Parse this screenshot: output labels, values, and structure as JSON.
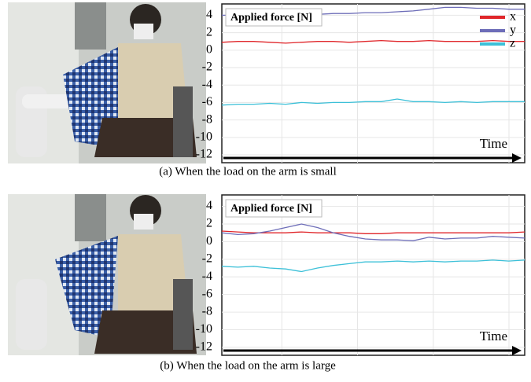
{
  "captions": [
    "(a) When the load on the arm is small",
    "(b) When the load on the arm is large"
  ],
  "chart_data": [
    {
      "type": "line",
      "title": "Applied force [N]",
      "x_label": "Time",
      "x": [
        0,
        1,
        2,
        3,
        4,
        5,
        6,
        7,
        8,
        9,
        10,
        11,
        12,
        13,
        14,
        15,
        16,
        17,
        18,
        19
      ],
      "xlim": [
        0,
        19
      ],
      "ylim": [
        -12.9,
        5.3
      ],
      "yticks": [
        4,
        2,
        0,
        -2,
        -4,
        -6,
        -8,
        -10,
        -12
      ],
      "grid": true,
      "legend": "upper right",
      "series": [
        {
          "name": "x",
          "color": "#e0262a",
          "values": [
            0.9,
            1.0,
            1.0,
            0.9,
            0.8,
            0.9,
            1.0,
            1.0,
            0.9,
            1.0,
            1.1,
            1.0,
            1.0,
            1.1,
            1.0,
            1.0,
            1.0,
            1.1,
            1.0,
            1.0
          ]
        },
        {
          "name": "y",
          "color": "#6d6db8",
          "values": [
            4.0,
            4.0,
            4.0,
            4.0,
            4.0,
            4.1,
            4.1,
            4.2,
            4.2,
            4.3,
            4.3,
            4.4,
            4.5,
            4.7,
            4.9,
            4.9,
            4.8,
            4.8,
            4.7,
            4.7
          ]
        },
        {
          "name": "z",
          "color": "#3cc0d8",
          "values": [
            -6.3,
            -6.2,
            -6.2,
            -6.1,
            -6.2,
            -6.0,
            -6.1,
            -6.0,
            -6.0,
            -5.9,
            -5.9,
            -5.6,
            -5.9,
            -5.9,
            -6.0,
            -5.9,
            -6.0,
            -5.9,
            -5.9,
            -5.9
          ]
        }
      ]
    },
    {
      "type": "line",
      "title": "Applied force [N]",
      "x_label": "Time",
      "x": [
        0,
        1,
        2,
        3,
        4,
        5,
        6,
        7,
        8,
        9,
        10,
        11,
        12,
        13,
        14,
        15,
        16,
        17,
        18,
        19
      ],
      "xlim": [
        0,
        19
      ],
      "ylim": [
        -12.9,
        5.3
      ],
      "yticks": [
        4,
        2,
        0,
        -2,
        -4,
        -6,
        -8,
        -10,
        -12
      ],
      "grid": true,
      "series": [
        {
          "color": "#e0262a",
          "values": [
            1.2,
            1.1,
            1.0,
            1.0,
            1.0,
            1.1,
            1.0,
            1.0,
            1.0,
            0.9,
            0.9,
            1.0,
            1.0,
            1.0,
            1.0,
            1.0,
            1.0,
            1.0,
            1.0,
            1.1
          ]
        },
        {
          "color": "#6d6db8",
          "values": [
            1.0,
            0.8,
            0.9,
            1.2,
            1.6,
            2.0,
            1.6,
            1.0,
            0.6,
            0.3,
            0.2,
            0.2,
            0.1,
            0.5,
            0.3,
            0.4,
            0.4,
            0.6,
            0.5,
            0.4
          ]
        },
        {
          "color": "#3cc0d8",
          "values": [
            -2.8,
            -2.9,
            -2.8,
            -3.0,
            -3.1,
            -3.4,
            -3.0,
            -2.7,
            -2.5,
            -2.3,
            -2.3,
            -2.2,
            -2.3,
            -2.2,
            -2.3,
            -2.2,
            -2.2,
            -2.1,
            -2.2,
            -2.1
          ]
        }
      ]
    }
  ]
}
